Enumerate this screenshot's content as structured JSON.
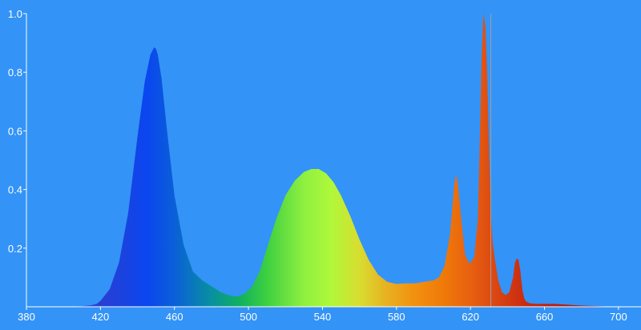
{
  "colors": {
    "background": "#3393F7",
    "axis": "#ffffff",
    "marker": "#a0a0a0"
  },
  "chart_data": {
    "type": "area",
    "title": "",
    "xlabel": "",
    "ylabel": "",
    "xlim": [
      380,
      710
    ],
    "ylim": [
      0,
      1.0
    ],
    "x_ticks": [
      380,
      420,
      460,
      500,
      540,
      580,
      620,
      660,
      700
    ],
    "x_tick_labels": [
      "380",
      "420",
      "460",
      "500",
      "540",
      "580",
      "620",
      "660",
      "700"
    ],
    "y_ticks": [
      0.2,
      0.4,
      0.6,
      0.8,
      1.0
    ],
    "y_tick_labels": [
      "0.2",
      "0.4",
      "0.6",
      "0.8",
      "1.0"
    ],
    "grid": false,
    "fill": "wavelength-color gradient",
    "marker_line_x": 631,
    "series": [
      {
        "x": [
          380,
          400,
          410,
          415,
          418,
          420,
          425,
          430,
          435,
          440,
          444,
          447,
          449,
          450,
          451,
          453,
          456,
          460,
          465,
          470,
          475,
          480,
          485,
          490,
          494,
          498,
          502,
          506,
          510,
          515,
          520,
          525,
          530,
          534,
          538,
          542,
          546,
          550,
          555,
          560,
          565,
          570,
          575,
          580,
          585,
          590,
          595,
          600,
          603,
          606,
          609,
          611,
          612,
          613,
          615,
          617,
          619,
          620,
          622,
          624,
          625,
          626,
          627,
          628,
          629,
          630,
          631,
          632,
          633,
          634,
          635,
          637,
          639,
          641,
          643,
          644,
          645,
          646,
          647,
          648,
          649,
          650,
          652,
          655,
          660,
          665,
          670,
          680,
          690,
          700,
          710
        ],
        "y": [
          0,
          0,
          0.002,
          0.005,
          0.01,
          0.02,
          0.06,
          0.15,
          0.32,
          0.58,
          0.77,
          0.86,
          0.885,
          0.88,
          0.86,
          0.78,
          0.6,
          0.38,
          0.21,
          0.12,
          0.09,
          0.07,
          0.05,
          0.038,
          0.035,
          0.045,
          0.07,
          0.12,
          0.2,
          0.3,
          0.38,
          0.43,
          0.46,
          0.47,
          0.47,
          0.455,
          0.425,
          0.38,
          0.31,
          0.23,
          0.16,
          0.11,
          0.085,
          0.078,
          0.08,
          0.08,
          0.085,
          0.09,
          0.1,
          0.14,
          0.25,
          0.4,
          0.45,
          0.43,
          0.3,
          0.18,
          0.15,
          0.15,
          0.17,
          0.3,
          0.55,
          0.85,
          1.0,
          0.96,
          0.8,
          0.55,
          0.33,
          0.22,
          0.17,
          0.13,
          0.09,
          0.05,
          0.04,
          0.05,
          0.1,
          0.15,
          0.165,
          0.16,
          0.12,
          0.06,
          0.03,
          0.018,
          0.012,
          0.01,
          0.01,
          0.01,
          0.008,
          0.004,
          0.002,
          0,
          0
        ]
      }
    ]
  }
}
